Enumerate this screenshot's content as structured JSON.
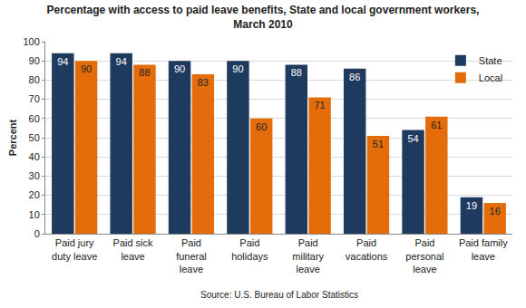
{
  "chart_data": {
    "type": "bar",
    "title": "Percentage with access to paid leave benefits, State and local government workers,\nMarch 2010",
    "y_label": "Percent",
    "categories": [
      "Paid jury\nduty leave",
      "Paid sick\nleave",
      "Paid\nfuneral\nleave",
      "Paid\nholidays",
      "Paid\nmilitary\nleave",
      "Paid\nvacations",
      "Paid\npersonal\nleave",
      "Paid family\nleave"
    ],
    "series": [
      {
        "name": "State",
        "color": "#1f3a5f",
        "values": [
          94,
          94,
          90,
          90,
          88,
          86,
          54,
          19
        ]
      },
      {
        "name": "Local",
        "color": "#e46c0a",
        "values": [
          90,
          88,
          83,
          60,
          71,
          51,
          61,
          16
        ]
      }
    ],
    "ylim": [
      0,
      100
    ],
    "yticks": [
      0,
      10,
      20,
      30,
      40,
      50,
      60,
      70,
      80,
      90,
      100
    ],
    "grid": true,
    "legend": "top right",
    "data_labels": true,
    "annotations": [
      "Source: U.S. Bureau of Labor Statistics"
    ]
  }
}
